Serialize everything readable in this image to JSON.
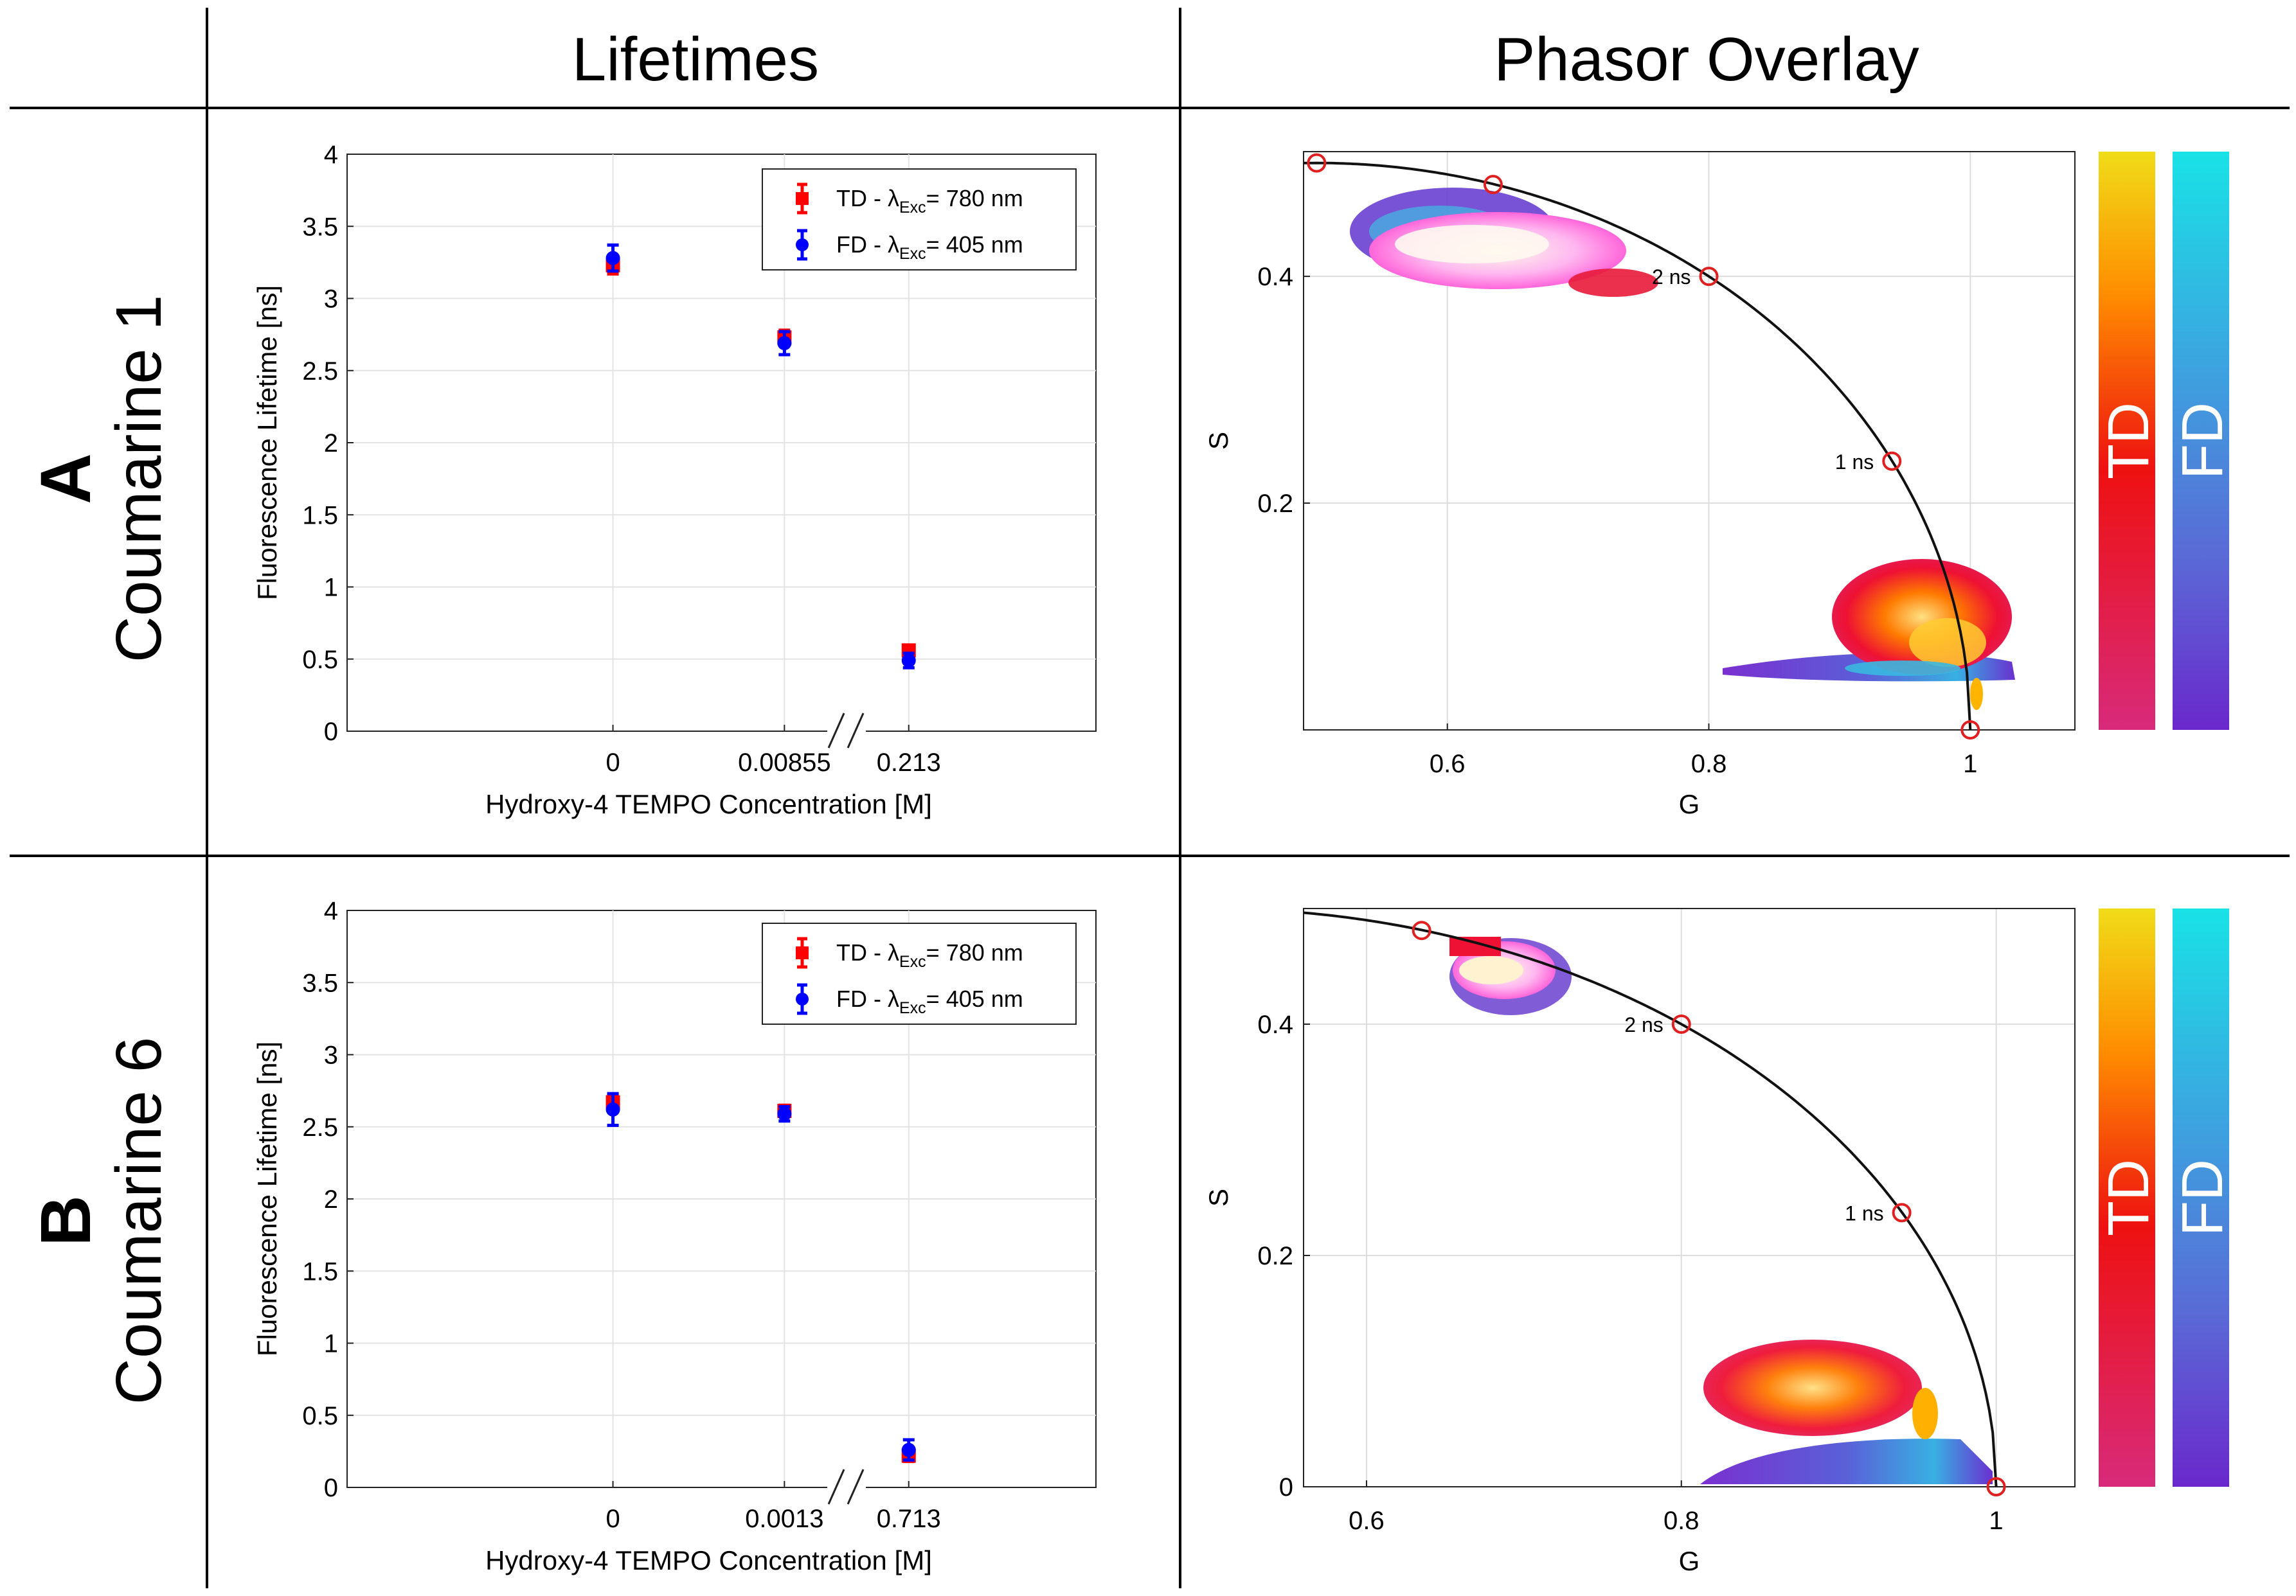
{
  "headers": {
    "col1": "Lifetimes",
    "col2": "Phasor Overlay"
  },
  "rows": [
    {
      "letter": "A",
      "name": "Coumarine 1"
    },
    {
      "letter": "B",
      "name": "Coumarine 6"
    }
  ],
  "colors": {
    "td": "#ff0000",
    "fd": "#0000ff",
    "circle_marker": "#e02020"
  },
  "colorbars": {
    "td_label": "TD",
    "fd_label": "FD"
  },
  "legend": {
    "td_prefix": "TD - ",
    "fd_prefix": "FD - ",
    "lambda": "λ",
    "sub": "Exc",
    "td_suffix": "= 780 nm",
    "fd_suffix": "= 405 nm"
  },
  "chart_data": [
    {
      "id": "lifetimes-A",
      "type": "scatter",
      "title": "",
      "xlabel": "Hydroxy-4 TEMPO Concentration [M]",
      "ylabel": "Fluorescence Lifetime [ns]",
      "ylim": [
        0,
        4
      ],
      "yticks": [
        "0",
        "0.5",
        "1",
        "1.5",
        "2",
        "2.5",
        "3",
        "3.5",
        "4"
      ],
      "categories": [
        "0",
        "0.00855",
        "0.213"
      ],
      "axis_break": "//",
      "series": [
        {
          "name": "TD",
          "values": [
            3.23,
            2.73,
            0.56
          ],
          "errors": [
            0.06,
            0.05,
            0.03
          ]
        },
        {
          "name": "FD",
          "values": [
            3.28,
            2.69,
            0.49
          ],
          "errors": [
            0.09,
            0.08,
            0.05
          ]
        }
      ]
    },
    {
      "id": "lifetimes-B",
      "type": "scatter",
      "title": "",
      "xlabel": "Hydroxy-4 TEMPO Concentration [M]",
      "ylabel": "Fluorescence Lifetime [ns]",
      "ylim": [
        0,
        4
      ],
      "yticks": [
        "0",
        "0.5",
        "1",
        "1.5",
        "2",
        "2.5",
        "3",
        "3.5",
        "4"
      ],
      "categories": [
        "0",
        "0.0013",
        "0.713"
      ],
      "axis_break": "//",
      "series": [
        {
          "name": "TD",
          "values": [
            2.67,
            2.61,
            0.22
          ],
          "errors": [
            0.05,
            0.04,
            0.04
          ]
        },
        {
          "name": "FD",
          "values": [
            2.62,
            2.59,
            0.26
          ],
          "errors": [
            0.11,
            0.05,
            0.07
          ]
        }
      ]
    },
    {
      "id": "phasor-A",
      "type": "scatter",
      "xlabel": "G",
      "ylabel": "S",
      "xlim": [
        0.49,
        1.08
      ],
      "ylim": [
        0,
        0.51
      ],
      "xticks": [
        0.6,
        0.8,
        1
      ],
      "xtick_labels": [
        "0.6",
        "0.8",
        "1"
      ],
      "yticks": [
        0.2,
        0.4
      ],
      "ytick_labels": [
        "0.2",
        "0.4"
      ],
      "reference_points": [
        {
          "g": 0.5,
          "s": 0.5,
          "label": ""
        },
        {
          "g": 0.635,
          "s": 0.481,
          "label": ""
        },
        {
          "g": 0.8,
          "s": 0.4,
          "label": "2 ns"
        },
        {
          "g": 0.94,
          "s": 0.237,
          "label": "1 ns"
        },
        {
          "g": 1.0,
          "s": 0.0,
          "label": ""
        }
      ],
      "clusters": [
        {
          "name": "TD",
          "g_range": [
            0.56,
            0.78
          ],
          "s_range": [
            0.42,
            0.49
          ]
        },
        {
          "name": "FD",
          "g_range": [
            0.58,
            0.72
          ],
          "s_range": [
            0.44,
            0.49
          ]
        },
        {
          "name": "TD",
          "g_range": [
            0.9,
            1.0
          ],
          "s_range": [
            0.02,
            0.17
          ]
        },
        {
          "name": "FD",
          "g_range": [
            0.83,
            1.03
          ],
          "s_range": [
            0.05,
            0.07
          ]
        }
      ]
    },
    {
      "id": "phasor-B",
      "type": "scatter",
      "xlabel": "G",
      "ylabel": "S",
      "xlim": [
        0.56,
        1.05
      ],
      "ylim": [
        0,
        0.5
      ],
      "xticks": [
        0.6,
        0.8,
        1
      ],
      "xtick_labels": [
        "0.6",
        "0.8",
        "1"
      ],
      "yticks": [
        0,
        0.2,
        0.4
      ],
      "ytick_labels": [
        "0",
        "0.2",
        "0.4"
      ],
      "reference_points": [
        {
          "g": 0.635,
          "s": 0.481,
          "label": ""
        },
        {
          "g": 0.8,
          "s": 0.4,
          "label": "2 ns"
        },
        {
          "g": 0.94,
          "s": 0.237,
          "label": "1 ns"
        },
        {
          "g": 1.0,
          "s": 0.0,
          "label": ""
        }
      ],
      "clusters": [
        {
          "name": "TD",
          "g_range": [
            0.66,
            0.74
          ],
          "s_range": [
            0.43,
            0.49
          ]
        },
        {
          "name": "TD",
          "g_range": [
            0.86,
            1.0
          ],
          "s_range": [
            0.04,
            0.15
          ]
        },
        {
          "name": "FD",
          "g_range": [
            0.84,
            1.04
          ],
          "s_range": [
            0.0,
            0.04
          ]
        }
      ]
    }
  ]
}
